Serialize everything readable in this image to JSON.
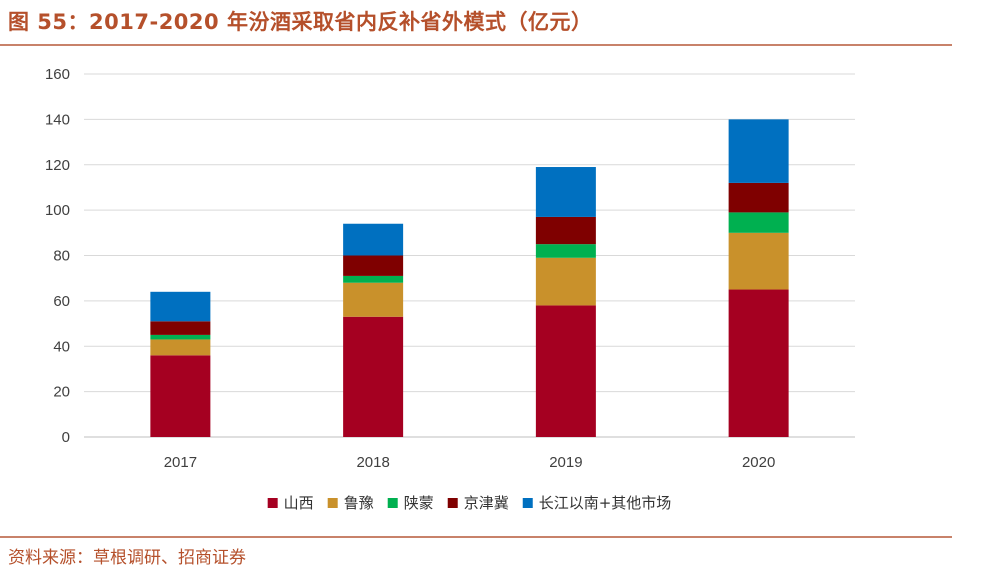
{
  "header": {
    "title": "图 55：2017-2020 年汾酒采取省内反补省外模式（亿元）"
  },
  "footer": {
    "source": "资料来源：草根调研、招商证券"
  },
  "chart_data": {
    "type": "bar",
    "stacked": true,
    "title": "2017-2020 年汾酒采取省内反补省外模式（亿元）",
    "xlabel": "",
    "ylabel": "",
    "categories": [
      "2017",
      "2018",
      "2019",
      "2020"
    ],
    "ylim": [
      0,
      160
    ],
    "yticks": [
      0,
      20,
      40,
      60,
      80,
      100,
      120,
      140,
      160
    ],
    "grid": true,
    "legend_position": "bottom",
    "series": [
      {
        "name": "山西",
        "color": "#a50021",
        "values": [
          36,
          53,
          58,
          65
        ]
      },
      {
        "name": "鲁豫",
        "color": "#c9912b",
        "values": [
          7,
          15,
          21,
          25
        ]
      },
      {
        "name": "陕蒙",
        "color": "#00b050",
        "values": [
          2,
          3,
          6,
          9
        ]
      },
      {
        "name": "京津冀",
        "color": "#7f0000",
        "values": [
          6,
          9,
          12,
          13
        ]
      },
      {
        "name": "长江以南+其他市场",
        "color": "#0070c0",
        "values": [
          13,
          14,
          22,
          28
        ]
      }
    ]
  }
}
